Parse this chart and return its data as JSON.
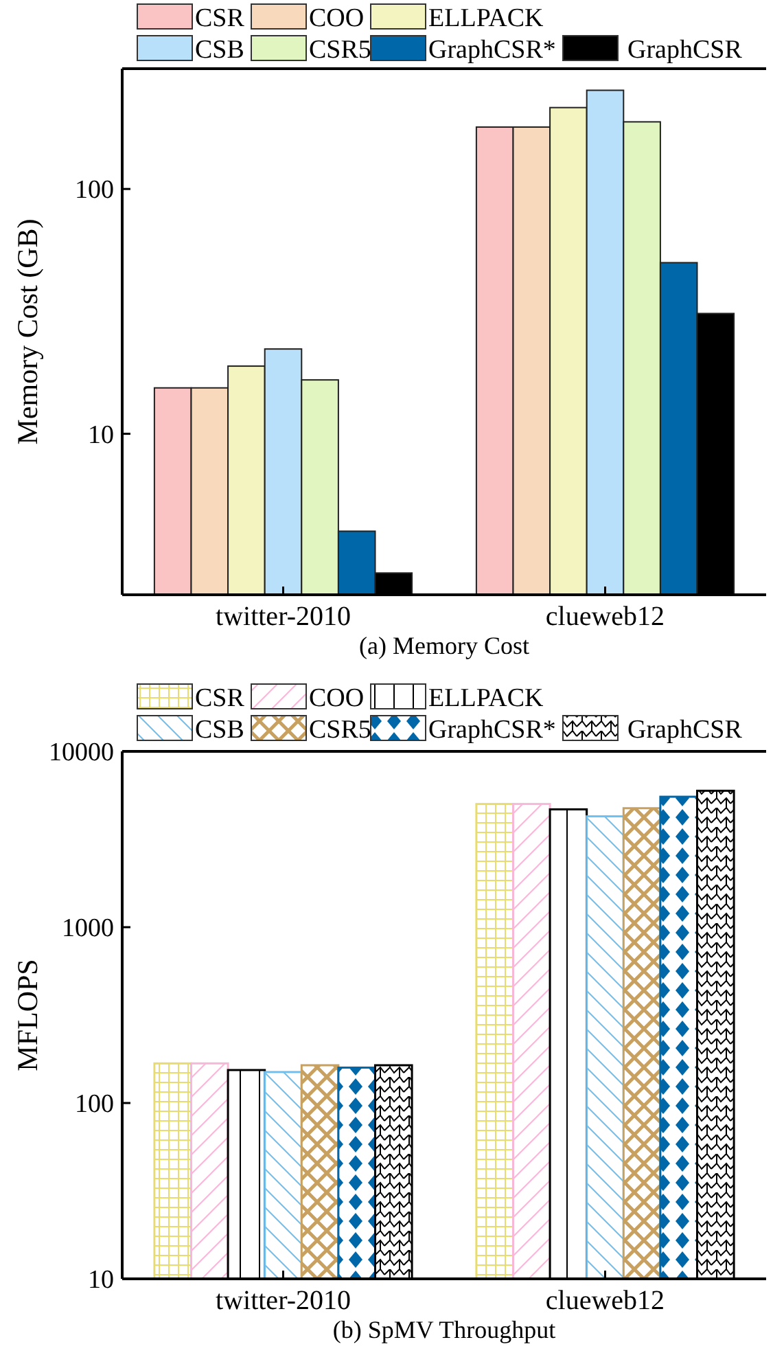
{
  "chart_data": [
    {
      "type": "bar",
      "xlabel": "(a) Memory Cost",
      "ylabel": "Memory Cost (GB)",
      "categories": [
        "twitter-2010",
        "clueweb12"
      ],
      "log": true,
      "ylim": [
        2.2,
        310
      ],
      "yticks": [
        10,
        100
      ],
      "legend": "top",
      "series": [
        {
          "name": "CSR",
          "color": "#fbc4c4",
          "values": [
            15.4,
            179
          ]
        },
        {
          "name": "COO",
          "color": "#f9d9bc",
          "values": [
            15.4,
            179
          ]
        },
        {
          "name": "ELLPACK",
          "color": "#f4f4c0",
          "values": [
            18.9,
            215
          ]
        },
        {
          "name": "CSB",
          "color": "#b8e0fa",
          "values": [
            22.2,
            253
          ]
        },
        {
          "name": "CSR5",
          "color": "#e0f5c0",
          "values": [
            16.6,
            188
          ]
        },
        {
          "name": "GraphCSR*",
          "color": "#0068a8",
          "values": [
            4.0,
            50
          ]
        },
        {
          "name": "GraphCSR",
          "color": "#000000",
          "values": [
            2.7,
            31
          ]
        }
      ]
    },
    {
      "type": "bar",
      "xlabel": "(b) SpMV Throughput",
      "ylabel": "MFLOPS",
      "categories": [
        "twitter-2010",
        "clueweb12"
      ],
      "log": true,
      "ylim": [
        10,
        10000
      ],
      "yticks": [
        10,
        100,
        1000,
        10000
      ],
      "legend": "top",
      "series": [
        {
          "name": "CSR",
          "color": "#e8dc70",
          "values": [
            168,
            5020
          ]
        },
        {
          "name": "COO",
          "color": "#f7b8d8",
          "values": [
            168,
            5020
          ]
        },
        {
          "name": "ELLPACK",
          "color": "#000000",
          "values": [
            154,
            4680
          ]
        },
        {
          "name": "CSB",
          "color": "#6ec0f0",
          "values": [
            150,
            4270
          ]
        },
        {
          "name": "CSR5",
          "color": "#c8a060",
          "values": [
            164,
            4750
          ]
        },
        {
          "name": "GraphCSR*",
          "color": "#0068a8",
          "values": [
            159,
            5520
          ]
        },
        {
          "name": "GraphCSR",
          "color": "#000000",
          "values": [
            164,
            5970
          ]
        }
      ]
    }
  ]
}
